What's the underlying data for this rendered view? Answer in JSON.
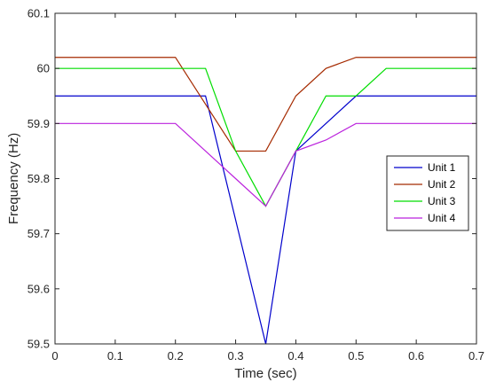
{
  "chart_data": {
    "type": "line",
    "title": "",
    "xlabel": "Time (sec)",
    "ylabel": "Frequency (Hz)",
    "xlim": [
      0,
      0.7
    ],
    "ylim": [
      59.5,
      60.1
    ],
    "x_ticks": [
      "0",
      "0.1",
      "0.2",
      "0.3",
      "0.4",
      "0.5",
      "0.6",
      "0.7"
    ],
    "y_ticks": [
      "59.5",
      "59.6",
      "59.7",
      "59.8",
      "59.9",
      "60",
      "60.1"
    ],
    "grid": false,
    "legend_position": "center-right",
    "series": [
      {
        "name": "Unit 1",
        "color": "#0000cc",
        "x": [
          0,
          0.25,
          0.35,
          0.4,
          0.5,
          0.7
        ],
        "y": [
          59.95,
          59.95,
          59.5,
          59.85,
          59.95,
          59.95
        ]
      },
      {
        "name": "Unit 2",
        "color": "#a52a00",
        "x": [
          0,
          0.2,
          0.3,
          0.35,
          0.4,
          0.45,
          0.5,
          0.7
        ],
        "y": [
          60.02,
          60.02,
          59.85,
          59.85,
          59.95,
          60.0,
          60.02,
          60.02
        ]
      },
      {
        "name": "Unit 3",
        "color": "#00dd00",
        "x": [
          0,
          0.25,
          0.3,
          0.35,
          0.4,
          0.45,
          0.5,
          0.55,
          0.7
        ],
        "y": [
          60.0,
          60.0,
          59.85,
          59.75,
          59.85,
          59.95,
          59.95,
          60.0,
          60.0
        ]
      },
      {
        "name": "Unit 4",
        "color": "#bb22dd",
        "x": [
          0,
          0.2,
          0.3,
          0.35,
          0.4,
          0.45,
          0.5,
          0.7
        ],
        "y": [
          59.9,
          59.9,
          59.8,
          59.75,
          59.85,
          59.87,
          59.9,
          59.9
        ]
      }
    ]
  }
}
